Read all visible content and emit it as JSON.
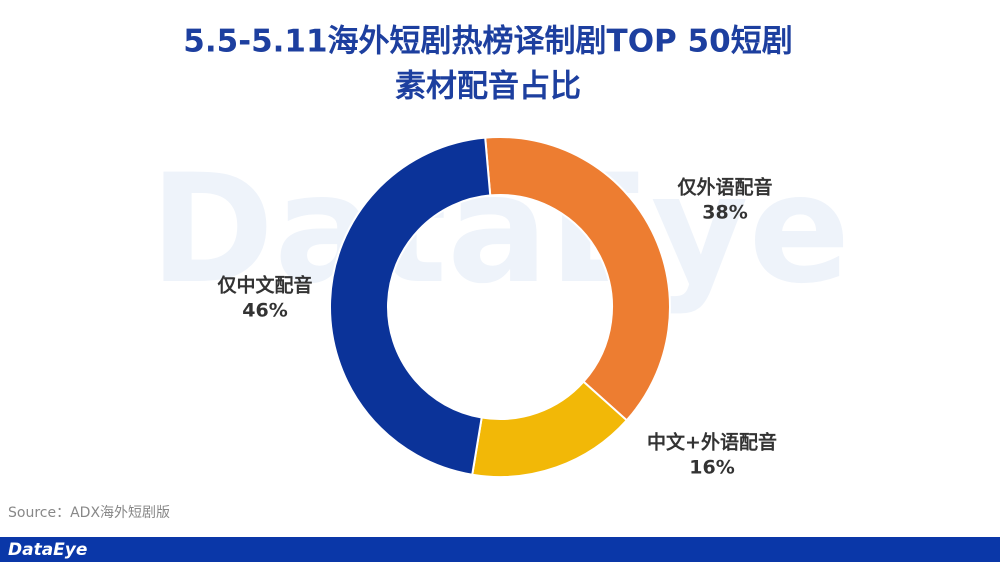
{
  "chart_data": {
    "type": "donut",
    "title": [
      "5.5-5.11海外短剧热榜译制剧TOP 50短剧",
      "素材配音占比"
    ],
    "categories": [
      "仅外语配音",
      "中文+外语配音",
      "仅中文配音"
    ],
    "values": [
      38,
      16,
      46
    ],
    "value_labels": [
      "38%",
      "16%",
      "46%"
    ],
    "colors": [
      "#ed7d31",
      "#f2b807",
      "#0b3399"
    ],
    "source": "Source：ADX海外短剧版",
    "watermark": "DataEye",
    "brand": "DataEye"
  }
}
